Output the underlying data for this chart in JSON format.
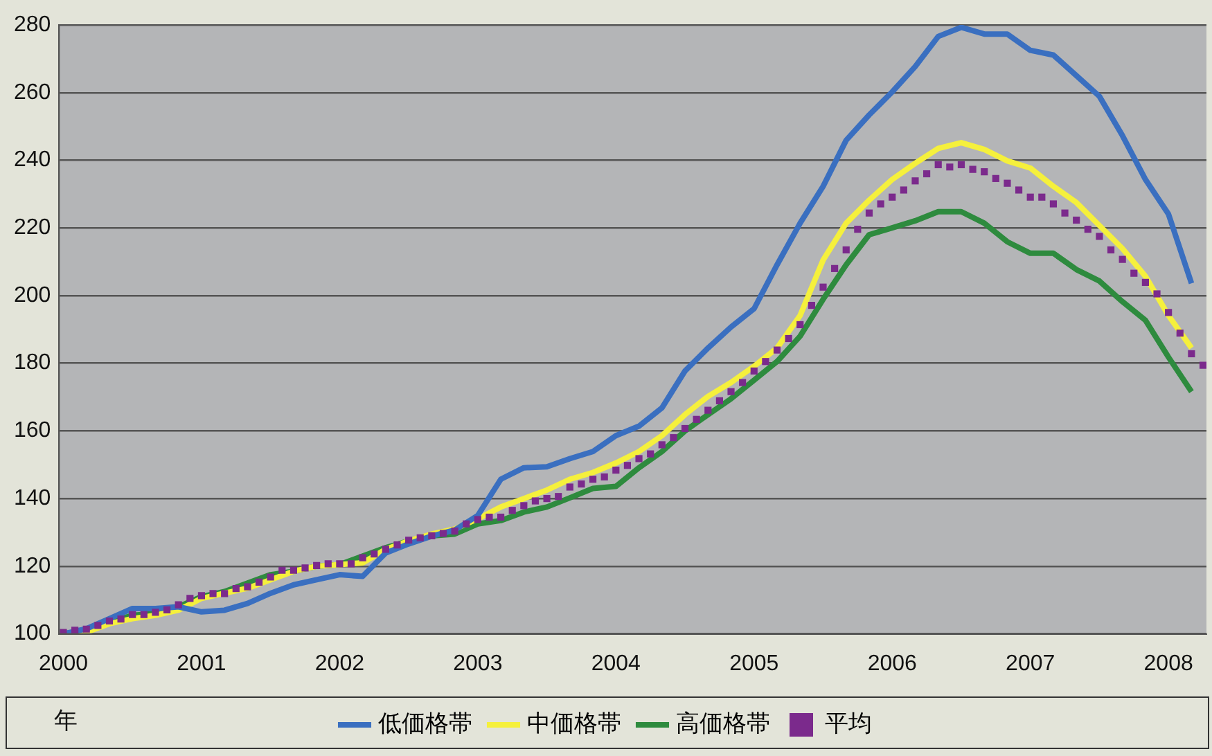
{
  "chart_data": {
    "type": "line",
    "xlabel": "年",
    "xlim": [
      "1999-12-20",
      "2008-04-10"
    ],
    "xticks": [
      "2000",
      "2001",
      "2002",
      "2003",
      "2004",
      "2005",
      "2006",
      "2007",
      "2008"
    ],
    "ylim": [
      100,
      280
    ],
    "yticks": [
      100,
      120,
      140,
      160,
      180,
      200,
      220,
      240,
      260,
      280
    ],
    "grid": "y",
    "legend": "bottom",
    "series": [
      {
        "name": "低価格帯",
        "type": "line",
        "color": "#3a6fc0",
        "marker": "none",
        "line_style": "solid",
        "x": [
          "2000-01",
          "2000-03",
          "2000-05",
          "2000-07",
          "2000-09",
          "2000-11",
          "2001-01",
          "2001-03",
          "2001-05",
          "2001-07",
          "2001-09",
          "2001-11",
          "2002-01",
          "2002-03",
          "2002-05",
          "2002-07",
          "2002-09",
          "2002-11",
          "2003-01",
          "2003-03",
          "2003-05",
          "2003-07",
          "2003-09",
          "2003-11",
          "2004-01",
          "2004-03",
          "2004-05",
          "2004-07",
          "2004-09",
          "2004-11",
          "2005-01",
          "2005-03",
          "2005-05",
          "2005-07",
          "2005-09",
          "2005-11",
          "2006-01",
          "2006-03",
          "2006-05",
          "2006-07",
          "2006-09",
          "2006-11",
          "2007-01",
          "2007-03",
          "2007-05",
          "2007-07",
          "2007-09",
          "2007-11",
          "2008-01",
          "2008-03"
        ],
        "values": [
          100,
          101.5,
          104.5,
          107.5,
          107.5,
          108,
          106.5,
          107,
          109,
          112,
          114.5,
          116,
          117.5,
          117,
          123.9,
          126.6,
          128.9,
          130.7,
          135,
          145.7,
          149.1,
          149.4,
          151.8,
          153.9,
          158.6,
          161.4,
          166.8,
          177.7,
          184.5,
          190.7,
          196.1,
          209.1,
          221.4,
          232.3,
          245.9,
          253.4,
          260.2,
          267.7,
          276.6,
          279.3,
          277.3,
          277.3,
          272.5,
          271.1,
          265,
          258.9,
          247.3,
          234.3,
          224.1,
          203.6
        ]
      },
      {
        "name": "中価格帯",
        "type": "line",
        "color": "#f5f03c",
        "marker": "none",
        "line_style": "solid",
        "x": [
          "2000-01",
          "2000-03",
          "2000-05",
          "2000-07",
          "2000-09",
          "2000-11",
          "2001-01",
          "2001-03",
          "2001-05",
          "2001-07",
          "2001-09",
          "2001-11",
          "2002-01",
          "2002-03",
          "2002-05",
          "2002-07",
          "2002-09",
          "2002-11",
          "2003-01",
          "2003-03",
          "2003-05",
          "2003-07",
          "2003-09",
          "2003-11",
          "2004-01",
          "2004-03",
          "2004-05",
          "2004-07",
          "2004-09",
          "2004-11",
          "2005-01",
          "2005-03",
          "2005-05",
          "2005-07",
          "2005-09",
          "2005-11",
          "2006-01",
          "2006-03",
          "2006-05",
          "2006-07",
          "2006-09",
          "2006-11",
          "2007-01",
          "2007-03",
          "2007-05",
          "2007-07",
          "2007-09",
          "2007-11",
          "2008-01",
          "2008-03"
        ],
        "values": [
          100,
          100.5,
          103,
          104.5,
          105.5,
          107,
          110.5,
          112,
          113.5,
          116,
          118.5,
          120,
          120.5,
          121,
          125,
          127.5,
          129.5,
          131,
          134,
          137.5,
          140,
          142.5,
          145.7,
          147.7,
          150.5,
          153.9,
          158.6,
          164.8,
          170.2,
          174.3,
          179.1,
          184.5,
          194.1,
          210.5,
          221.4,
          228.2,
          234.3,
          239.1,
          243.5,
          245.2,
          243.2,
          239.8,
          237.7,
          232.3,
          227.5,
          220.7,
          213.9,
          205.7,
          194.1,
          184.5
        ]
      },
      {
        "name": "高価格帯",
        "type": "line",
        "color": "#2e8b3e",
        "marker": "none",
        "line_style": "solid",
        "x": [
          "2000-01",
          "2000-03",
          "2000-05",
          "2000-07",
          "2000-09",
          "2000-11",
          "2001-01",
          "2001-03",
          "2001-05",
          "2001-07",
          "2001-09",
          "2001-11",
          "2002-01",
          "2002-03",
          "2002-05",
          "2002-07",
          "2002-09",
          "2002-11",
          "2003-01",
          "2003-03",
          "2003-05",
          "2003-07",
          "2003-09",
          "2003-11",
          "2004-01",
          "2004-03",
          "2004-05",
          "2004-07",
          "2004-09",
          "2004-11",
          "2005-01",
          "2005-03",
          "2005-05",
          "2005-07",
          "2005-09",
          "2005-11",
          "2006-01",
          "2006-03",
          "2006-05",
          "2006-07",
          "2006-09",
          "2006-11",
          "2007-01",
          "2007-03",
          "2007-05",
          "2007-07",
          "2007-09",
          "2007-11",
          "2008-01",
          "2008-03"
        ],
        "values": [
          100,
          101,
          103.5,
          105.5,
          106,
          108,
          111,
          112.5,
          115,
          117.5,
          118.5,
          120,
          120.5,
          123,
          125.5,
          127.5,
          129,
          129.5,
          132.5,
          133.5,
          136,
          137.5,
          140.2,
          143,
          143.6,
          149.1,
          153.9,
          160,
          164.8,
          169.5,
          175,
          180.5,
          188,
          198.9,
          209.1,
          218,
          220,
          222.1,
          224.8,
          224.8,
          221.4,
          215.9,
          212.5,
          212.5,
          207.7,
          204.3,
          198.2,
          192.7,
          181.8,
          171.6
        ]
      },
      {
        "name": "平均",
        "type": "scatter",
        "color": "#7b2a8c",
        "marker": "square",
        "x": [
          "2000-01",
          "2000-02",
          "2000-03",
          "2000-04",
          "2000-05",
          "2000-06",
          "2000-07",
          "2000-08",
          "2000-09",
          "2000-10",
          "2000-11",
          "2000-12",
          "2001-01",
          "2001-02",
          "2001-03",
          "2001-04",
          "2001-05",
          "2001-06",
          "2001-07",
          "2001-08",
          "2001-09",
          "2001-10",
          "2001-11",
          "2001-12",
          "2002-01",
          "2002-02",
          "2002-03",
          "2002-04",
          "2002-05",
          "2002-06",
          "2002-07",
          "2002-08",
          "2002-09",
          "2002-10",
          "2002-11",
          "2002-12",
          "2003-01",
          "2003-02",
          "2003-03",
          "2003-04",
          "2003-05",
          "2003-06",
          "2003-07",
          "2003-08",
          "2003-09",
          "2003-10",
          "2003-11",
          "2003-12",
          "2004-01",
          "2004-02",
          "2004-03",
          "2004-04",
          "2004-05",
          "2004-06",
          "2004-07",
          "2004-08",
          "2004-09",
          "2004-10",
          "2004-11",
          "2004-12",
          "2005-01",
          "2005-02",
          "2005-03",
          "2005-04",
          "2005-05",
          "2005-06",
          "2005-07",
          "2005-08",
          "2005-09",
          "2005-10",
          "2005-11",
          "2005-12",
          "2006-01",
          "2006-02",
          "2006-03",
          "2006-04",
          "2006-05",
          "2006-06",
          "2006-07",
          "2006-08",
          "2006-09",
          "2006-10",
          "2006-11",
          "2006-12",
          "2007-01",
          "2007-02",
          "2007-03",
          "2007-04",
          "2007-05",
          "2007-06",
          "2007-07",
          "2007-08",
          "2007-09",
          "2007-10",
          "2007-11",
          "2007-12",
          "2008-01",
          "2008-02",
          "2008-03",
          "2008-04"
        ],
        "values": [
          100.4,
          101.1,
          101.4,
          102.5,
          103.8,
          104.4,
          105.7,
          105.7,
          106.4,
          107.1,
          108.6,
          110.5,
          111.3,
          111.9,
          111.9,
          113.4,
          113.9,
          115.3,
          116.8,
          118.8,
          118.8,
          119.5,
          120.2,
          120.7,
          120.7,
          120.7,
          122.5,
          123.6,
          125,
          126.3,
          127.7,
          128.4,
          129,
          129.7,
          130.4,
          132.5,
          133.8,
          134.5,
          134.5,
          136.5,
          137.9,
          139.3,
          140,
          140.6,
          143.4,
          144.3,
          145.7,
          146.4,
          148.4,
          149.8,
          151.8,
          153.2,
          155.9,
          158,
          160.7,
          163.4,
          166.1,
          168.9,
          171.6,
          174.3,
          177.7,
          180.5,
          183.9,
          187.3,
          191.4,
          197.1,
          202.5,
          208,
          213.5,
          219.6,
          224.4,
          227.1,
          229.1,
          231.2,
          233.9,
          236,
          238.7,
          238,
          238.7,
          237.3,
          236.6,
          234.6,
          233.2,
          231.2,
          229.1,
          229.1,
          227.1,
          224.4,
          222.3,
          219.6,
          217.5,
          213.5,
          210.7,
          206.6,
          203.9,
          200.5,
          195,
          188.9,
          182.8,
          179.4
        ]
      }
    ]
  }
}
